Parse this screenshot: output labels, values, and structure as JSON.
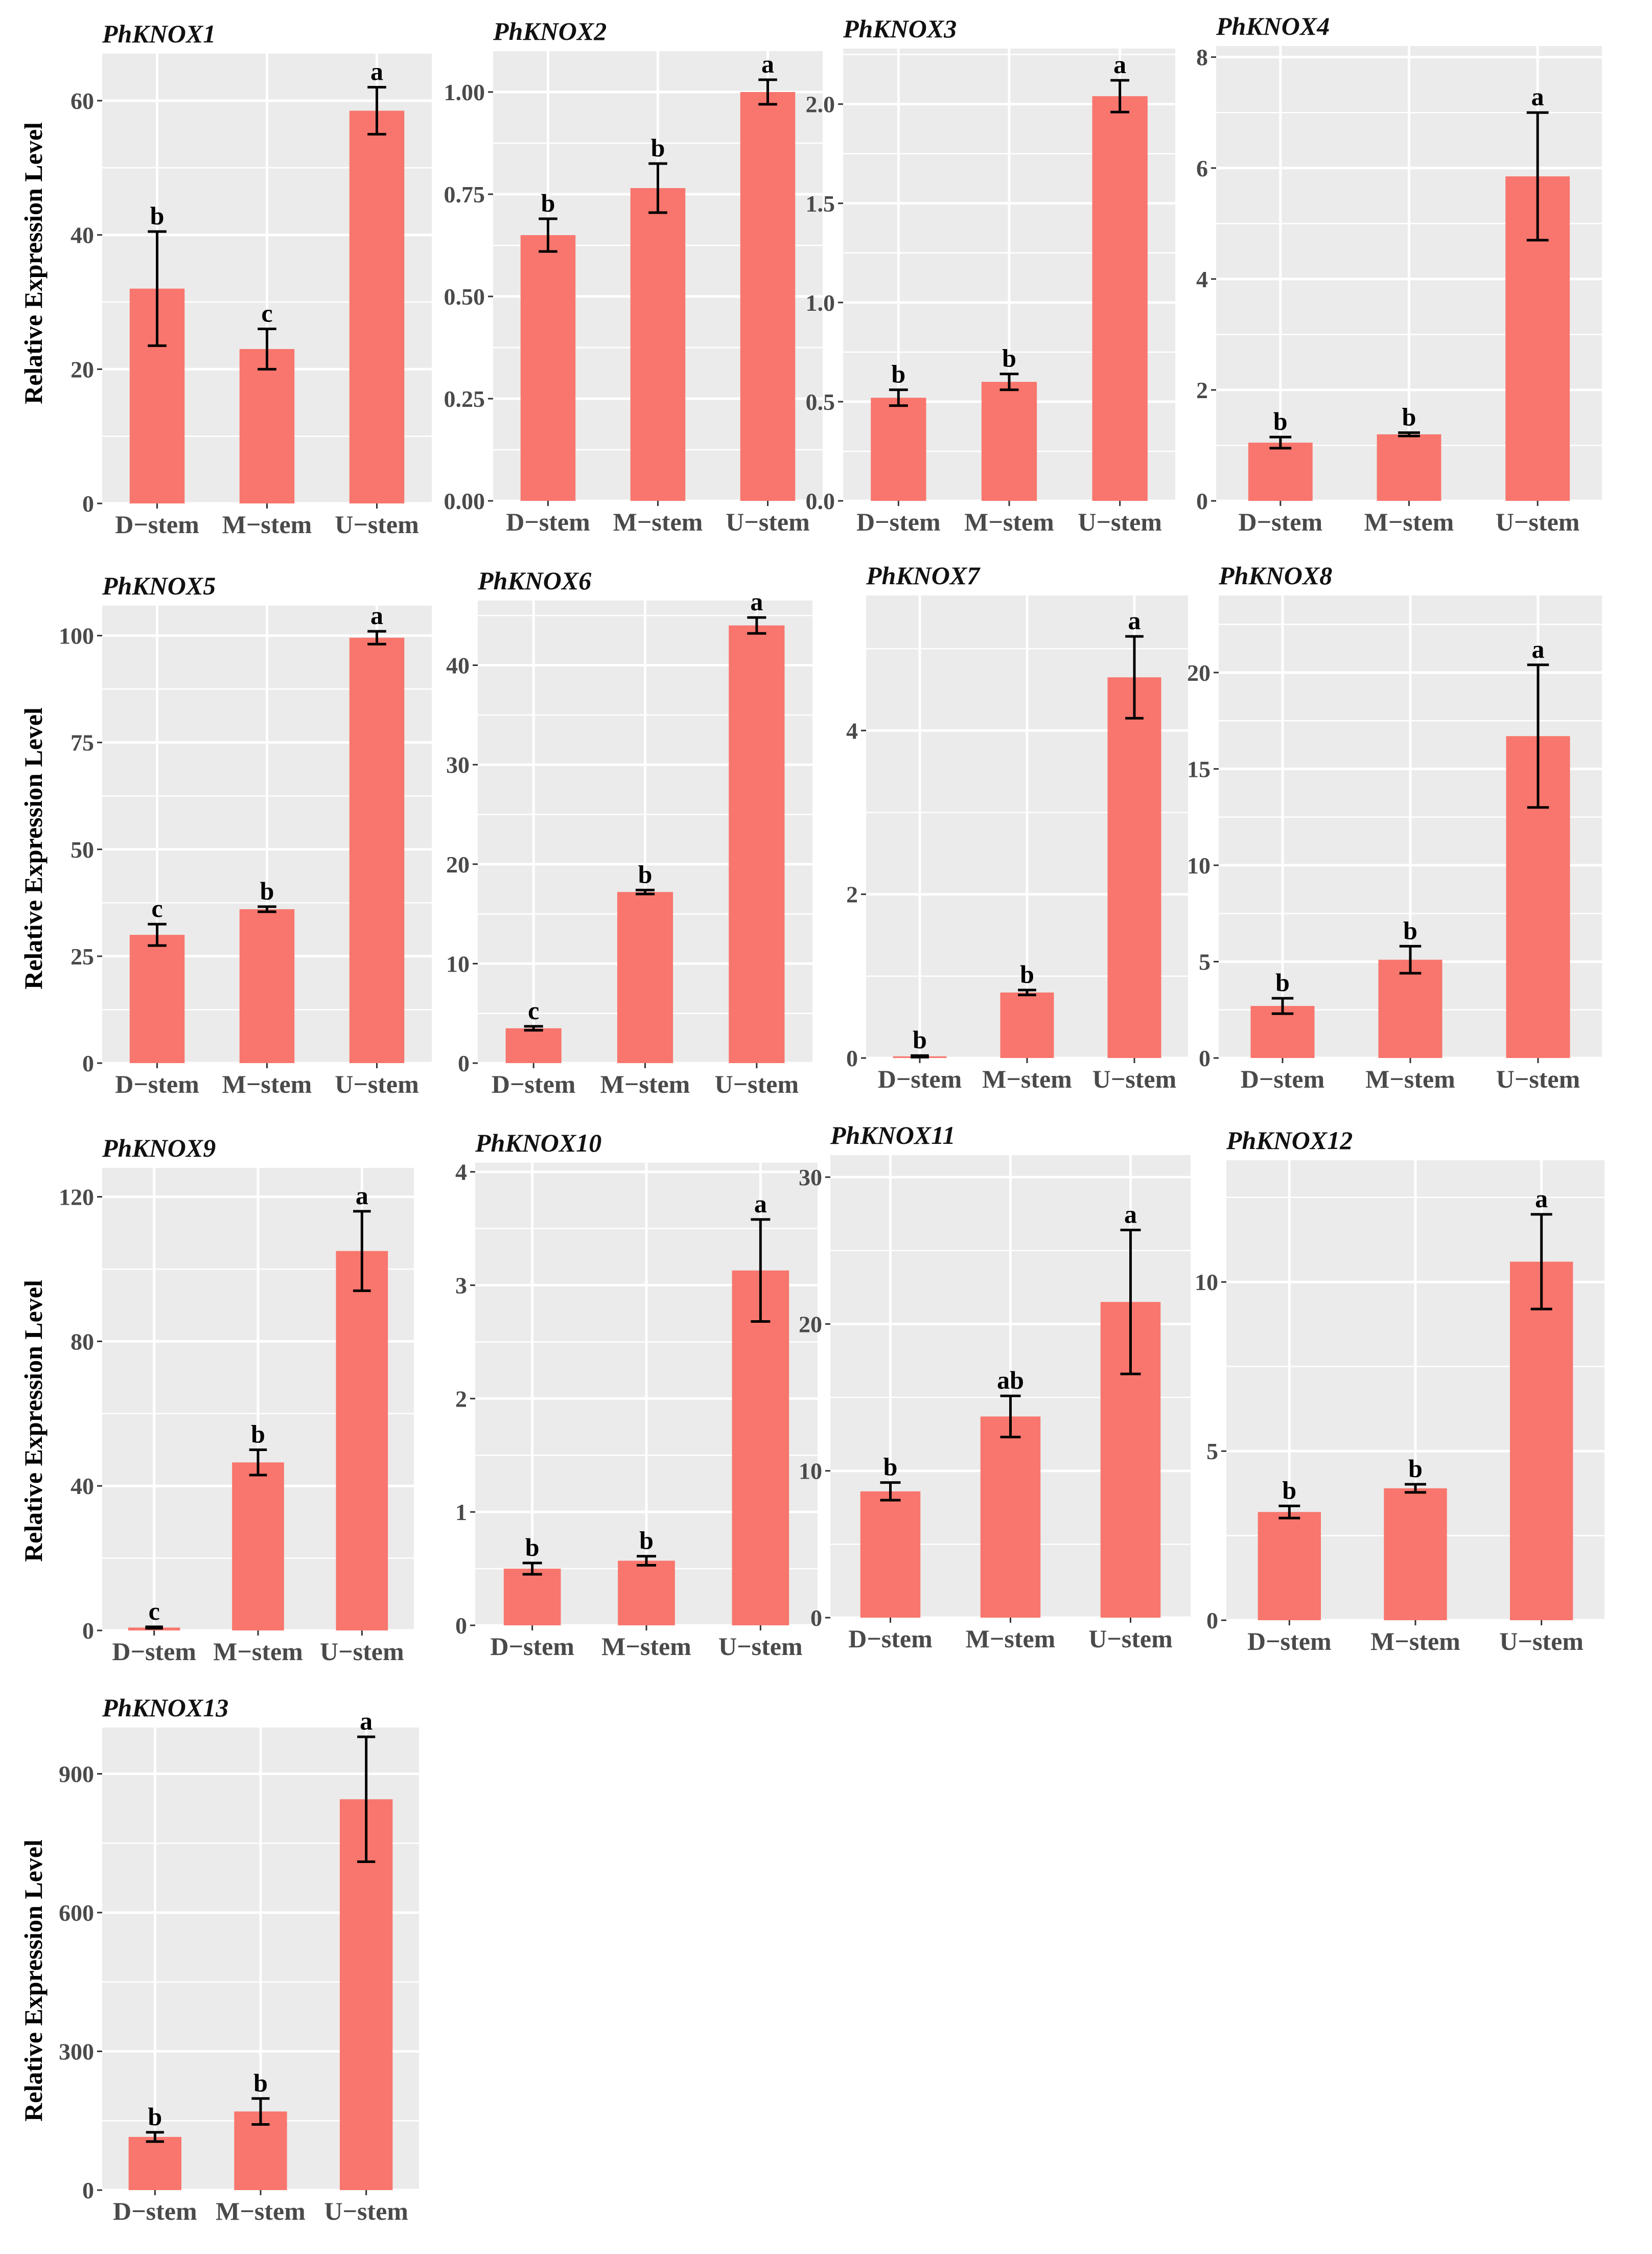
{
  "figure": {
    "ylabel": "Relative Expression Level",
    "bar_color": "#F8766D",
    "panel_bg": "#EBEBEB",
    "grid_color": "#FFFFFF"
  },
  "chart_data": [
    {
      "type": "bar",
      "title": "PhKNOX1",
      "categories": [
        "D−stem",
        "M−stem",
        "U−stem"
      ],
      "values": [
        32,
        23,
        58.5
      ],
      "errors": [
        8.5,
        3,
        3.5
      ],
      "significance": [
        "b",
        "c",
        "a"
      ],
      "ylim": [
        0,
        67
      ],
      "yticks": [
        0,
        20,
        40,
        60
      ]
    },
    {
      "type": "bar",
      "title": "PhKNOX2",
      "categories": [
        "D−stem",
        "M−stem",
        "U−stem"
      ],
      "values": [
        0.65,
        0.765,
        1.0
      ],
      "errors": [
        0.04,
        0.06,
        0.03
      ],
      "significance": [
        "b",
        "b",
        "a"
      ],
      "ylim": [
        0,
        1.1
      ],
      "yticks": [
        0,
        0.25,
        0.5,
        0.75,
        1.0
      ],
      "ytick_labels": [
        "0.00",
        "0.25",
        "0.50",
        "0.75",
        "1.00"
      ]
    },
    {
      "type": "bar",
      "title": "PhKNOX3",
      "categories": [
        "D−stem",
        "M−stem",
        "U−stem"
      ],
      "values": [
        0.52,
        0.6,
        2.04
      ],
      "errors": [
        0.04,
        0.04,
        0.08
      ],
      "significance": [
        "b",
        "b",
        "a"
      ],
      "ylim": [
        0,
        2.28
      ],
      "yticks": [
        0,
        0.5,
        1.0,
        1.5,
        2.0
      ],
      "ytick_labels": [
        "0.0",
        "0.5",
        "1.0",
        "1.5",
        "2.0"
      ]
    },
    {
      "type": "bar",
      "title": "PhKNOX4",
      "categories": [
        "D−stem",
        "M−stem",
        "U−stem"
      ],
      "values": [
        1.05,
        1.2,
        5.85
      ],
      "errors": [
        0.1,
        0.03,
        1.15
      ],
      "significance": [
        "b",
        "b",
        "a"
      ],
      "ylim": [
        0,
        8.2
      ],
      "yticks": [
        0,
        2,
        4,
        6,
        8
      ]
    },
    {
      "type": "bar",
      "title": "PhKNOX5",
      "categories": [
        "D−stem",
        "M−stem",
        "U−stem"
      ],
      "values": [
        30,
        36,
        99.5
      ],
      "errors": [
        2.5,
        0.6,
        1.5
      ],
      "significance": [
        "c",
        "b",
        "a"
      ],
      "ylim": [
        0,
        107
      ],
      "yticks": [
        0,
        25,
        50,
        75,
        100
      ]
    },
    {
      "type": "bar",
      "title": "PhKNOX6",
      "categories": [
        "D−stem",
        "M−stem",
        "U−stem"
      ],
      "values": [
        3.5,
        17.2,
        44
      ],
      "errors": [
        0.2,
        0.2,
        0.8
      ],
      "significance": [
        "c",
        "b",
        "a"
      ],
      "ylim": [
        0,
        46.5
      ],
      "yticks": [
        0,
        10,
        20,
        30,
        40
      ]
    },
    {
      "type": "bar",
      "title": "PhKNOX7",
      "categories": [
        "D−stem",
        "M−stem",
        "U−stem"
      ],
      "values": [
        0.02,
        0.8,
        4.65
      ],
      "errors": [
        0.01,
        0.03,
        0.5
      ],
      "significance": [
        "b",
        "b",
        "a"
      ],
      "ylim": [
        0,
        5.65
      ],
      "yticks": [
        0,
        2,
        4
      ]
    },
    {
      "type": "bar",
      "title": "PhKNOX8",
      "categories": [
        "D−stem",
        "M−stem",
        "U−stem"
      ],
      "values": [
        2.7,
        5.1,
        16.7
      ],
      "errors": [
        0.4,
        0.7,
        3.7
      ],
      "significance": [
        "b",
        "b",
        "a"
      ],
      "ylim": [
        0,
        24
      ],
      "yticks": [
        0,
        5,
        10,
        15,
        20
      ]
    },
    {
      "type": "bar",
      "title": "PhKNOX9",
      "categories": [
        "D−stem",
        "M−stem",
        "U−stem"
      ],
      "values": [
        0.8,
        46.5,
        105
      ],
      "errors": [
        0.2,
        3.5,
        11
      ],
      "significance": [
        "c",
        "b",
        "a"
      ],
      "ylim": [
        0,
        128
      ],
      "yticks": [
        0,
        40,
        80,
        120
      ]
    },
    {
      "type": "bar",
      "title": "PhKNOX10",
      "categories": [
        "D−stem",
        "M−stem",
        "U−stem"
      ],
      "values": [
        0.5,
        0.57,
        3.13
      ],
      "errors": [
        0.05,
        0.04,
        0.45
      ],
      "significance": [
        "b",
        "b",
        "a"
      ],
      "ylim": [
        0,
        4.08
      ],
      "yticks": [
        0,
        1,
        2,
        3,
        4
      ]
    },
    {
      "type": "bar",
      "title": "PhKNOX11",
      "categories": [
        "D−stem",
        "M−stem",
        "U−stem"
      ],
      "values": [
        8.6,
        13.7,
        21.5
      ],
      "errors": [
        0.6,
        1.4,
        4.9
      ],
      "significance": [
        "b",
        "ab",
        "a"
      ],
      "ylim": [
        0,
        31.5
      ],
      "yticks": [
        0,
        10,
        20,
        30
      ]
    },
    {
      "type": "bar",
      "title": "PhKNOX12",
      "categories": [
        "D−stem",
        "M−stem",
        "U−stem"
      ],
      "values": [
        3.2,
        3.9,
        10.6
      ],
      "errors": [
        0.18,
        0.12,
        1.4
      ],
      "significance": [
        "b",
        "b",
        "a"
      ],
      "ylim": [
        0,
        13.6
      ],
      "yticks": [
        0,
        5,
        10
      ]
    },
    {
      "type": "bar",
      "title": "PhKNOX13",
      "categories": [
        "D−stem",
        "M−stem",
        "U−stem"
      ],
      "values": [
        115,
        170,
        845
      ],
      "errors": [
        10,
        28,
        135
      ],
      "significance": [
        "b",
        "b",
        "a"
      ],
      "ylim": [
        0,
        1000
      ],
      "yticks": [
        0,
        300,
        600,
        900
      ]
    }
  ]
}
